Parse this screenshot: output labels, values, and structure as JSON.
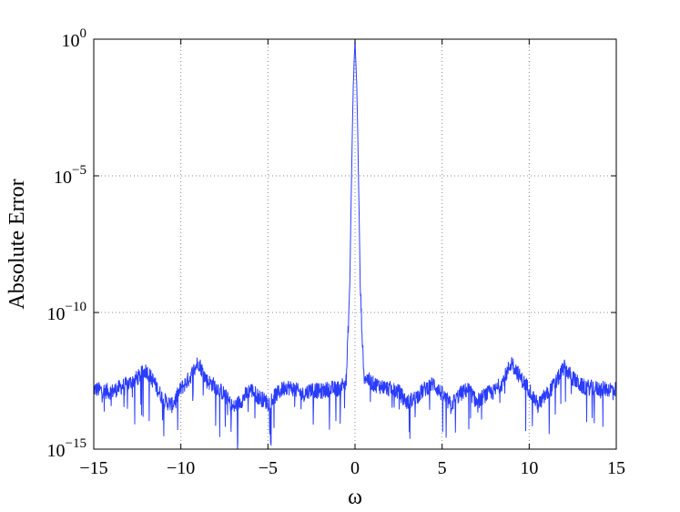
{
  "chart_data": {
    "type": "line",
    "xlabel": "ω",
    "ylabel": "Absolute Error",
    "xlim": [
      -15,
      15
    ],
    "ylim_log10": [
      -15,
      0
    ],
    "yscale": "log",
    "grid": true,
    "x_ticks": [
      -15,
      -10,
      -5,
      0,
      5,
      10,
      15
    ],
    "y_tick_exponents": [
      0,
      -5,
      -10,
      -15
    ],
    "y_tick_labels": [
      "10^0",
      "10^-5",
      "10^-10",
      "10^-15"
    ],
    "series": [
      {
        "color": "#2a3cff",
        "x": [
          -15,
          -14,
          -13,
          -12.5,
          -12,
          -11.5,
          -11,
          -10.5,
          -10,
          -9.5,
          -9,
          -8.5,
          -8,
          -7.5,
          -7,
          -6.5,
          -6,
          -5.5,
          -5,
          -4.5,
          -4,
          -3.5,
          -3,
          -2.5,
          -2,
          -1.5,
          -1,
          -0.5,
          -0.3,
          -0.2,
          -0.1,
          0,
          0.1,
          0.2,
          0.3,
          0.5,
          1,
          1.5,
          2,
          2.5,
          3,
          3.5,
          4,
          4.5,
          5,
          5.5,
          6,
          6.5,
          7,
          7.5,
          8,
          8.5,
          9,
          9.5,
          10,
          10.5,
          11,
          11.5,
          12,
          12.5,
          13,
          14,
          15
        ],
        "log10_y": [
          -12.8,
          -12.9,
          -12.6,
          -12.4,
          -12.1,
          -12.6,
          -13.2,
          -13.4,
          -12.8,
          -12.4,
          -11.8,
          -12.5,
          -12.7,
          -13.0,
          -13.5,
          -13.2,
          -12.8,
          -13.1,
          -13.3,
          -13.0,
          -12.7,
          -12.8,
          -13.0,
          -12.8,
          -12.9,
          -12.8,
          -12.8,
          -12.5,
          -9.0,
          -5.0,
          -1.7,
          0,
          -1.7,
          -5.0,
          -9.0,
          -12.3,
          -12.6,
          -12.7,
          -12.8,
          -12.9,
          -13.3,
          -13.1,
          -12.8,
          -12.6,
          -13.0,
          -13.4,
          -13.0,
          -12.8,
          -13.3,
          -13.0,
          -12.9,
          -12.5,
          -11.8,
          -12.4,
          -12.8,
          -13.4,
          -13.0,
          -12.6,
          -12.0,
          -12.4,
          -12.7,
          -12.8,
          -12.8
        ]
      }
    ]
  }
}
